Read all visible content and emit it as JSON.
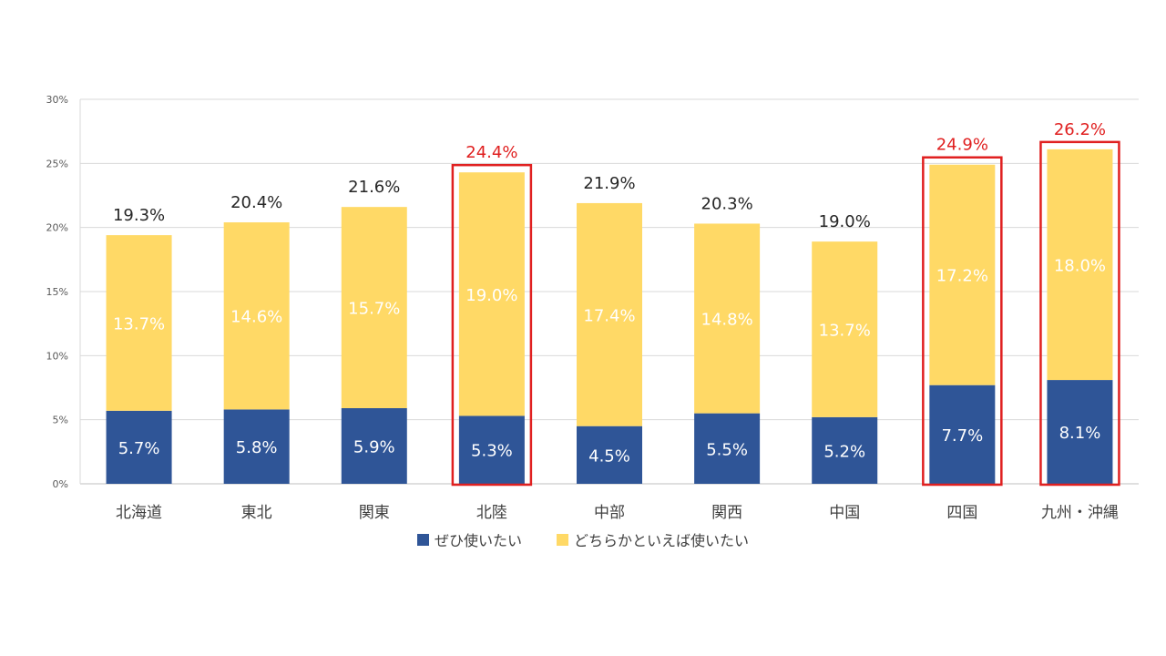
{
  "chart_data": {
    "type": "bar",
    "stacked": true,
    "categories": [
      "北海道",
      "東北",
      "関東",
      "北陸",
      "中部",
      "関西",
      "中国",
      "四国",
      "九州・沖縄"
    ],
    "series": [
      {
        "name": "ぜひ使いたい",
        "color": "#2f5597",
        "values": [
          5.7,
          5.8,
          5.9,
          5.3,
          4.5,
          5.5,
          5.2,
          7.7,
          8.1
        ],
        "labels": [
          "5.7%",
          "5.8%",
          "5.9%",
          "5.3%",
          "4.5%",
          "5.5%",
          "5.2%",
          "7.7%",
          "8.1%"
        ]
      },
      {
        "name": "どちらかといえば使いたい",
        "color": "#ffd966",
        "values": [
          13.7,
          14.6,
          15.7,
          19.0,
          17.4,
          14.8,
          13.7,
          17.2,
          18.0
        ],
        "labels": [
          "13.7%",
          "14.6%",
          "15.7%",
          "19.0%",
          "17.4%",
          "14.8%",
          "13.7%",
          "17.2%",
          "18.0%"
        ]
      }
    ],
    "totals": [
      19.3,
      20.4,
      21.6,
      24.4,
      21.9,
      20.3,
      19.0,
      24.9,
      26.2
    ],
    "total_labels": [
      "19.3%",
      "20.4%",
      "21.6%",
      "24.4%",
      "21.9%",
      "20.3%",
      "19.0%",
      "24.9%",
      "26.2%"
    ],
    "highlighted": [
      false,
      false,
      false,
      true,
      false,
      false,
      false,
      true,
      true
    ],
    "highlight_color": "#e02020",
    "ylim": [
      0,
      30
    ],
    "y_ticks": [
      "0%",
      "5%",
      "10%",
      "15%",
      "20%",
      "25%",
      "30%"
    ],
    "grid": true,
    "legend_position": "bottom"
  }
}
